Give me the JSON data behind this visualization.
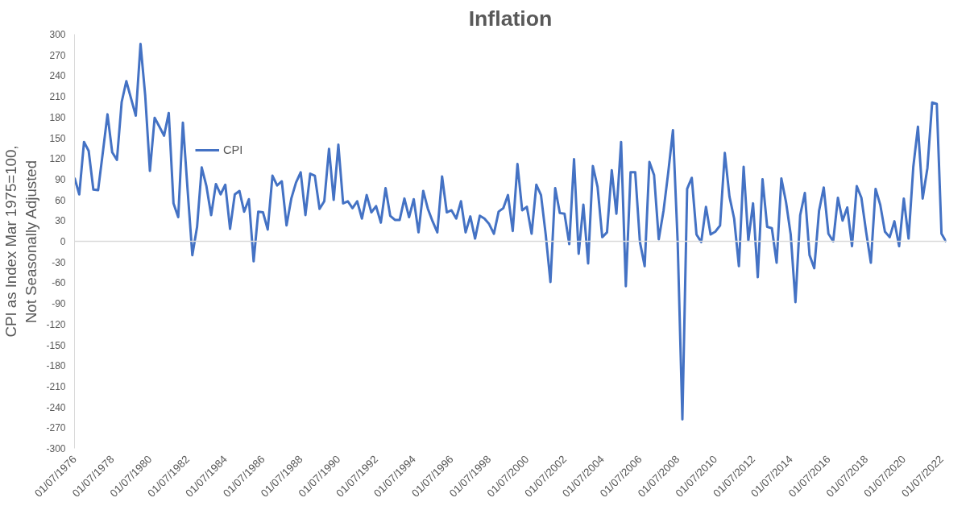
{
  "chart_data": {
    "type": "line",
    "title": "Inflation",
    "ylabel": "CPI as Index Mar 1975=100,\nNot Seasonally Adjusted",
    "x": [
      "1976-07",
      "1976-10",
      "1977-01",
      "1977-04",
      "1977-07",
      "1977-10",
      "1978-01",
      "1978-04",
      "1978-07",
      "1978-10",
      "1979-01",
      "1979-04",
      "1979-07",
      "1979-10",
      "1980-01",
      "1980-04",
      "1980-07",
      "1980-10",
      "1981-01",
      "1981-04",
      "1981-07",
      "1981-10",
      "1982-01",
      "1982-04",
      "1982-07",
      "1982-10",
      "1983-01",
      "1983-04",
      "1983-07",
      "1983-10",
      "1984-01",
      "1984-04",
      "1984-07",
      "1984-10",
      "1985-01",
      "1985-04",
      "1985-07",
      "1985-10",
      "1986-01",
      "1986-04",
      "1986-07",
      "1986-10",
      "1987-01",
      "1987-04",
      "1987-07",
      "1987-10",
      "1988-01",
      "1988-04",
      "1988-07",
      "1988-10",
      "1989-01",
      "1989-04",
      "1989-07",
      "1989-10",
      "1990-01",
      "1990-04",
      "1990-07",
      "1990-10",
      "1991-01",
      "1991-04",
      "1991-07",
      "1991-10",
      "1992-01",
      "1992-04",
      "1992-07",
      "1992-10",
      "1993-01",
      "1993-04",
      "1993-07",
      "1993-10",
      "1994-01",
      "1994-04",
      "1994-07",
      "1994-10",
      "1995-01",
      "1995-04",
      "1995-07",
      "1995-10",
      "1996-01",
      "1996-04",
      "1996-07",
      "1996-10",
      "1997-01",
      "1997-04",
      "1997-07",
      "1997-10",
      "1998-01",
      "1998-04",
      "1998-07",
      "1998-10",
      "1999-01",
      "1999-04",
      "1999-07",
      "1999-10",
      "2000-01",
      "2000-04",
      "2000-07",
      "2000-10",
      "2001-01",
      "2001-04",
      "2001-07",
      "2001-10",
      "2002-01",
      "2002-04",
      "2002-07",
      "2002-10",
      "2003-01",
      "2003-04",
      "2003-07",
      "2003-10",
      "2004-01",
      "2004-04",
      "2004-07",
      "2004-10",
      "2005-01",
      "2005-04",
      "2005-07",
      "2005-10",
      "2006-01",
      "2006-04",
      "2006-07",
      "2006-10",
      "2007-01",
      "2007-04",
      "2007-07",
      "2007-10",
      "2008-01",
      "2008-04",
      "2008-07",
      "2008-10",
      "2009-01",
      "2009-04",
      "2009-07",
      "2009-10",
      "2010-01",
      "2010-04",
      "2010-07",
      "2010-10",
      "2011-01",
      "2011-04",
      "2011-07",
      "2011-10",
      "2012-01",
      "2012-04",
      "2012-07",
      "2012-10",
      "2013-01",
      "2013-04",
      "2013-07",
      "2013-10",
      "2014-01",
      "2014-04",
      "2014-07",
      "2014-10",
      "2015-01",
      "2015-04",
      "2015-07",
      "2015-10",
      "2016-01",
      "2016-04",
      "2016-07",
      "2016-10",
      "2017-01",
      "2017-04",
      "2017-07",
      "2017-10",
      "2018-01",
      "2018-04",
      "2018-07",
      "2018-10",
      "2019-01",
      "2019-04",
      "2019-07",
      "2019-10",
      "2020-01",
      "2020-04",
      "2020-07",
      "2020-10",
      "2021-01",
      "2021-04",
      "2021-07",
      "2021-10",
      "2022-01",
      "2022-04",
      "2022-07",
      "2022-10"
    ],
    "series": [
      {
        "name": "CPI",
        "color": "#4472c4",
        "values": [
          92,
          68,
          144,
          131,
          75,
          74,
          129,
          184,
          129,
          118,
          202,
          232,
          207,
          182,
          286,
          211,
          102,
          179,
          166,
          153,
          186,
          55,
          35,
          172,
          75,
          -20,
          21,
          107,
          80,
          38,
          83,
          68,
          82,
          18,
          68,
          73,
          43,
          61,
          -29,
          43,
          42,
          17,
          95,
          81,
          87,
          23,
          62,
          85,
          100,
          38,
          98,
          95,
          47,
          58,
          134,
          60,
          140,
          55,
          58,
          48,
          58,
          33,
          67,
          42,
          51,
          27,
          77,
          37,
          31,
          31,
          62,
          35,
          61,
          13,
          73,
          47,
          29,
          13,
          94,
          42,
          45,
          33,
          58,
          13,
          36,
          4,
          37,
          33,
          25,
          11,
          43,
          48,
          67,
          15,
          112,
          45,
          50,
          11,
          82,
          67,
          10,
          -59,
          77,
          41,
          40,
          -4,
          119,
          -18,
          53,
          -32,
          109,
          79,
          6,
          13,
          103,
          40,
          144,
          -65,
          100,
          100,
          -1,
          -36,
          115,
          96,
          3,
          44,
          100,
          161,
          0,
          -258,
          76,
          92,
          10,
          -1,
          50,
          10,
          14,
          23,
          128,
          65,
          33,
          -36,
          108,
          1,
          55,
          -52,
          90,
          21,
          19,
          -31,
          91,
          57,
          10,
          -88,
          38,
          70,
          -20,
          -39,
          44,
          78,
          11,
          0,
          63,
          30,
          49,
          -7,
          80,
          63,
          14,
          -31,
          76,
          53,
          14,
          6,
          29,
          -7,
          62,
          4,
          108,
          166,
          62,
          106,
          201,
          199,
          11,
          -1
        ]
      }
    ],
    "xlim": [
      "1976-07",
      "2022-10"
    ],
    "xticks": [
      {
        "value": "1976-07",
        "label": "01/07/1976"
      },
      {
        "value": "1978-07",
        "label": "01/07/1978"
      },
      {
        "value": "1980-07",
        "label": "01/07/1980"
      },
      {
        "value": "1982-07",
        "label": "01/07/1982"
      },
      {
        "value": "1984-07",
        "label": "01/07/1984"
      },
      {
        "value": "1986-07",
        "label": "01/07/1986"
      },
      {
        "value": "1988-07",
        "label": "01/07/1988"
      },
      {
        "value": "1990-07",
        "label": "01/07/1990"
      },
      {
        "value": "1992-07",
        "label": "01/07/1992"
      },
      {
        "value": "1994-07",
        "label": "01/07/1994"
      },
      {
        "value": "1996-07",
        "label": "01/07/1996"
      },
      {
        "value": "1998-07",
        "label": "01/07/1998"
      },
      {
        "value": "2000-07",
        "label": "01/07/2000"
      },
      {
        "value": "2002-07",
        "label": "01/07/2002"
      },
      {
        "value": "2004-07",
        "label": "01/07/2004"
      },
      {
        "value": "2006-07",
        "label": "01/07/2006"
      },
      {
        "value": "2008-07",
        "label": "01/07/2008"
      },
      {
        "value": "2010-07",
        "label": "01/07/2010"
      },
      {
        "value": "2012-07",
        "label": "01/07/2012"
      },
      {
        "value": "2014-07",
        "label": "01/07/2014"
      },
      {
        "value": "2016-07",
        "label": "01/07/2016"
      },
      {
        "value": "2018-07",
        "label": "01/07/2018"
      },
      {
        "value": "2020-07",
        "label": "01/07/2020"
      },
      {
        "value": "2022-07",
        "label": "01/07/2022"
      }
    ],
    "ylim": [
      -300,
      300
    ],
    "yticks": [
      -300,
      -270,
      -240,
      -210,
      -180,
      -150,
      -120,
      -90,
      -60,
      -30,
      0,
      30,
      60,
      90,
      120,
      150,
      180,
      210,
      240,
      270,
      300
    ],
    "ref_lines": [
      {
        "axis": "y",
        "value": 0,
        "label": null,
        "color": "#d9d9d9"
      }
    ],
    "grid": false,
    "legend": "top left",
    "marker": "none",
    "line_style": "solid"
  }
}
